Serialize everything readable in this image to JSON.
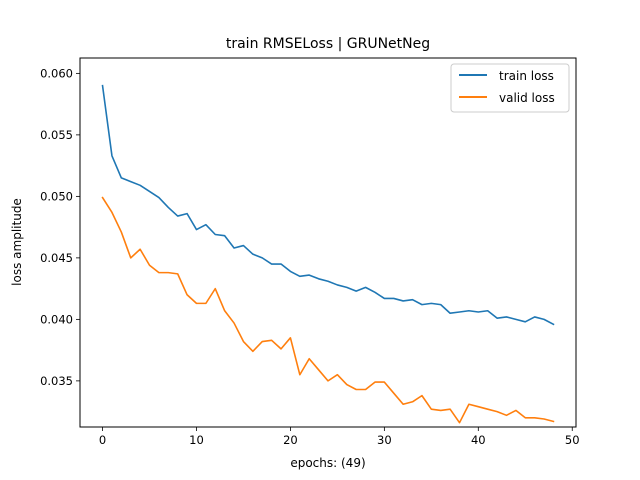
{
  "chart_data": {
    "type": "line",
    "title": "train RMSELoss | GRUNetNeg",
    "xlabel": "epochs: (49)",
    "ylabel": "loss amplitude",
    "xlim": [
      -2.4,
      50.4
    ],
    "ylim": [
      0.03125,
      0.06125
    ],
    "xticks": [
      0,
      10,
      20,
      30,
      40,
      50
    ],
    "yticks": [
      0.035,
      0.04,
      0.045,
      0.05,
      0.055,
      0.06
    ],
    "ytick_labels": [
      "0.035",
      "0.040",
      "0.045",
      "0.050",
      "0.055",
      "0.060"
    ],
    "grid": false,
    "legend_position": "top-right",
    "x": [
      0,
      1,
      2,
      3,
      4,
      5,
      6,
      7,
      8,
      9,
      10,
      11,
      12,
      13,
      14,
      15,
      16,
      17,
      18,
      19,
      20,
      21,
      22,
      23,
      24,
      25,
      26,
      27,
      28,
      29,
      30,
      31,
      32,
      33,
      34,
      35,
      36,
      37,
      38,
      39,
      40,
      41,
      42,
      43,
      44,
      45,
      46,
      47,
      48
    ],
    "series": [
      {
        "name": "train loss",
        "color": "#1f77b4",
        "values": [
          0.059,
          0.0533,
          0.0515,
          0.0512,
          0.0509,
          0.0504,
          0.0499,
          0.0491,
          0.0484,
          0.0486,
          0.0473,
          0.0477,
          0.0469,
          0.0468,
          0.0458,
          0.046,
          0.0453,
          0.045,
          0.0445,
          0.0445,
          0.0439,
          0.0435,
          0.0436,
          0.0433,
          0.0431,
          0.0428,
          0.0426,
          0.0423,
          0.0426,
          0.0422,
          0.0417,
          0.0417,
          0.0415,
          0.0416,
          0.0412,
          0.0413,
          0.0412,
          0.0405,
          0.0406,
          0.0407,
          0.0406,
          0.0407,
          0.0401,
          0.0402,
          0.04,
          0.0398,
          0.0402,
          0.04,
          0.0396
        ]
      },
      {
        "name": "valid loss",
        "color": "#ff7f0e",
        "values": [
          0.0499,
          0.0487,
          0.0471,
          0.045,
          0.0457,
          0.0444,
          0.0438,
          0.0438,
          0.0437,
          0.042,
          0.0413,
          0.0413,
          0.0425,
          0.0407,
          0.0397,
          0.0382,
          0.0374,
          0.0382,
          0.0383,
          0.0376,
          0.0385,
          0.0355,
          0.0368,
          0.0359,
          0.035,
          0.0355,
          0.0347,
          0.0343,
          0.0343,
          0.0349,
          0.0349,
          0.034,
          0.0331,
          0.0333,
          0.0338,
          0.0327,
          0.0326,
          0.0327,
          0.0316,
          0.0331,
          0.0329,
          0.0327,
          0.0325,
          0.0322,
          0.0326,
          0.032,
          0.032,
          0.0319,
          0.0317
        ]
      }
    ]
  }
}
